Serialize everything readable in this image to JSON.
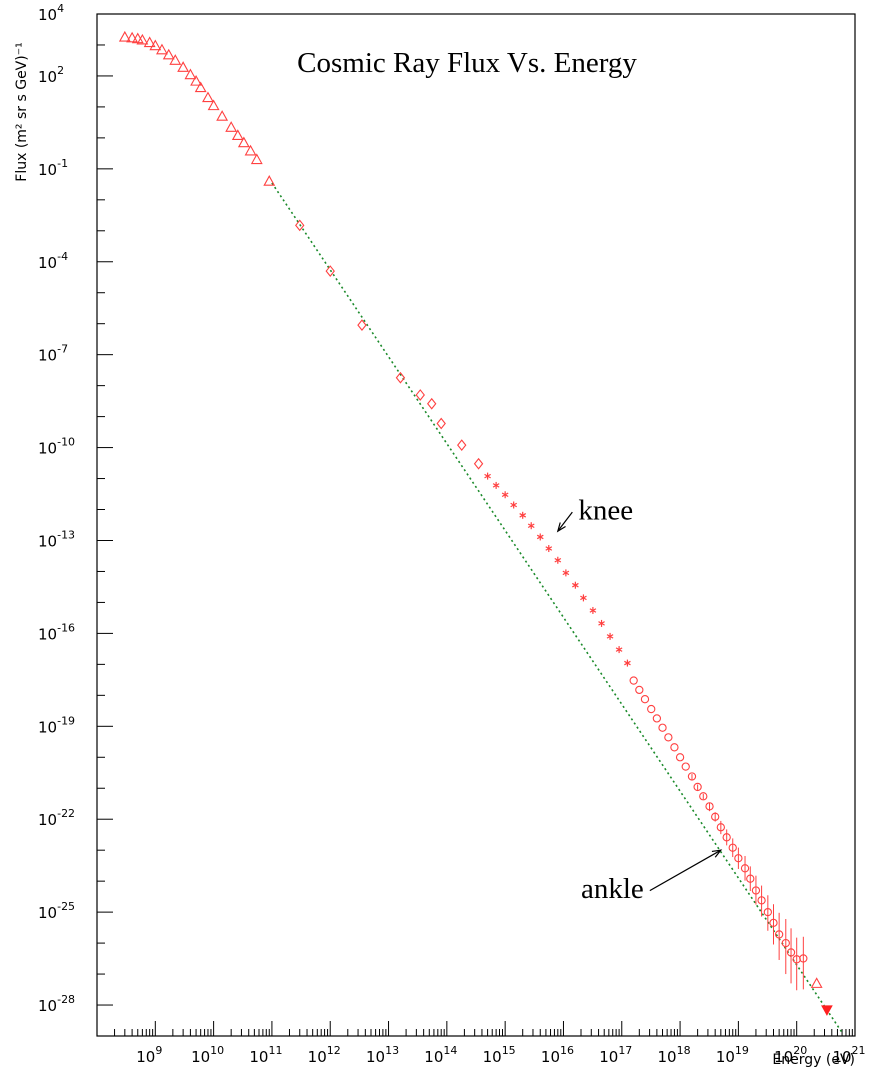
{
  "chart_data": {
    "type": "scatter",
    "title": "Cosmic Ray Flux Vs. Energy",
    "xlabel": "Energy (eV)",
    "ylabel": "Flux (m² sr s GeV)⁻¹",
    "xscale": "log",
    "yscale": "log",
    "xlim": [
      100000000.0,
      1e+21
    ],
    "ylim": [
      1e-29,
      10000.0
    ],
    "grid": false,
    "legend": "none",
    "x_ticks": [
      {
        "base": "10",
        "exp": "9",
        "value": 1000000000.0
      },
      {
        "base": "10",
        "exp": "10",
        "value": 10000000000.0
      },
      {
        "base": "10",
        "exp": "11",
        "value": 100000000000.0
      },
      {
        "base": "10",
        "exp": "12",
        "value": 1000000000000.0
      },
      {
        "base": "10",
        "exp": "13",
        "value": 10000000000000.0
      },
      {
        "base": "10",
        "exp": "14",
        "value": 100000000000000.0
      },
      {
        "base": "10",
        "exp": "15",
        "value": 1000000000000000.0
      },
      {
        "base": "10",
        "exp": "16",
        "value": 1e+16
      },
      {
        "base": "10",
        "exp": "17",
        "value": 1e+17
      },
      {
        "base": "10",
        "exp": "18",
        "value": 1e+18
      },
      {
        "base": "10",
        "exp": "19",
        "value": 1e+19
      },
      {
        "base": "10",
        "exp": "20",
        "value": 1e+20
      },
      {
        "base": "10",
        "exp": "21",
        "value": 1e+21
      }
    ],
    "y_ticks": [
      {
        "base": "10",
        "exp": "4",
        "value": 10000.0
      },
      {
        "base": "10",
        "exp": "2",
        "value": 100.0
      },
      {
        "base": "10",
        "exp": "-1",
        "value": 0.1
      },
      {
        "base": "10",
        "exp": "-4",
        "value": 0.0001
      },
      {
        "base": "10",
        "exp": "-7",
        "value": 1e-07
      },
      {
        "base": "10",
        "exp": "-10",
        "value": 1e-10
      },
      {
        "base": "10",
        "exp": "-13",
        "value": 1e-13
      },
      {
        "base": "10",
        "exp": "-16",
        "value": 1e-16
      },
      {
        "base": "10",
        "exp": "-19",
        "value": 1e-19
      },
      {
        "base": "10",
        "exp": "-22",
        "value": 1e-22
      },
      {
        "base": "10",
        "exp": "-25",
        "value": 1e-25
      },
      {
        "base": "10",
        "exp": "-28",
        "value": 1e-28
      }
    ],
    "series": [
      {
        "marker": "triangle",
        "color": "#ff4040",
        "x": [
          300000000.0,
          400000000.0,
          500000000.0,
          600000000.0,
          800000000.0,
          1000000000.0,
          1300000000.0,
          1700000000.0,
          2200000000.0,
          3000000000.0,
          4000000000.0,
          5000000000.0,
          6000000000.0,
          8000000000.0,
          10000000000.0,
          14000000000.0,
          20000000000.0,
          26000000000.0,
          33000000000.0,
          43000000000.0,
          55000000000.0,
          90000000000.0
        ],
        "y": [
          1800,
          1700,
          1600,
          1450,
          1200,
          950,
          700,
          480,
          320,
          190,
          110,
          68,
          42,
          20,
          11,
          5,
          2.2,
          1.2,
          0.7,
          0.38,
          0.2,
          0.04
        ]
      },
      {
        "marker": "diamond",
        "color": "#ff4040",
        "x": [
          300000000000.0,
          1000000000000.0,
          3500000000000.0,
          16000000000000.0,
          35000000000000.0,
          55000000000000.0,
          80000000000000.0,
          180000000000000.0,
          350000000000000.0
        ],
        "y": [
          0.0015,
          5e-05,
          9e-07,
          1.8e-08,
          5e-09,
          2.6e-09,
          6e-10,
          1.2e-10,
          3e-11
        ]
      },
      {
        "marker": "star",
        "color": "#ff4040",
        "x": [
          500000000000000.0,
          700000000000000.0,
          1000000000000000.0,
          1400000000000000.0,
          2000000000000000.0,
          2800000000000000.0,
          4000000000000000.0,
          5600000000000000.0,
          8000000000000000.0,
          1.1e+16,
          1.6e+16,
          2.2e+16,
          3.2e+16,
          4.5e+16,
          6.3e+16,
          9e+16,
          1.25e+17
        ],
        "y": [
          1.2e-11,
          6e-12,
          3e-12,
          1.4e-12,
          6.5e-13,
          3e-13,
          1.3e-13,
          5.5e-14,
          2.3e-14,
          9e-15,
          3.6e-15,
          1.4e-15,
          5.5e-16,
          2.1e-16,
          8e-17,
          3e-17,
          1.1e-17
        ]
      },
      {
        "marker": "circle",
        "color": "#ff4040",
        "x": [
          1.6e+17,
          2e+17,
          2.5e+17,
          3.2e+17,
          4e+17,
          5e+17,
          6.3e+17,
          8e+17,
          1e+18,
          1.25e+18,
          1.6e+18,
          2e+18,
          2.5e+18,
          3.2e+18,
          4e+18,
          5e+18,
          6.3e+18,
          8e+18,
          1e+19,
          1.3e+19,
          1.6e+19,
          2e+19,
          2.5e+19,
          3.2e+19,
          4e+19,
          5e+19,
          6.5e+19,
          8e+19,
          1e+20,
          1.3e+20
        ],
        "y": [
          3e-18,
          1.5e-18,
          7.5e-19,
          3.6e-19,
          1.8e-19,
          9e-20,
          4.4e-20,
          2.1e-20,
          1e-20,
          5e-21,
          2.4e-21,
          1.1e-21,
          5.5e-22,
          2.6e-22,
          1.2e-22,
          5.5e-23,
          2.6e-23,
          1.2e-23,
          5.5e-24,
          2.6e-24,
          1.2e-24,
          5e-25,
          2.4e-25,
          1e-25,
          4.5e-26,
          1.9e-26,
          1e-26,
          5e-27,
          3e-27,
          3.2e-27
        ],
        "err_lo": [
          0.9,
          0.9,
          0.9,
          0.9,
          0.9,
          0.9,
          0.9,
          0.9,
          0.9,
          0.9,
          0.8,
          0.8,
          0.8,
          0.7,
          0.7,
          0.6,
          0.55,
          0.5,
          0.45,
          0.4,
          0.4,
          0.35,
          0.3,
          0.25,
          0.2,
          0.15,
          0.1,
          0.1,
          0.1,
          0.1
        ],
        "err_hi": [
          1.1,
          1.1,
          1.1,
          1.1,
          1.1,
          1.1,
          1.1,
          1.1,
          1.1,
          1.1,
          1.2,
          1.2,
          1.2,
          1.3,
          1.4,
          1.6,
          1.8,
          2.0,
          2.2,
          2.5,
          2.5,
          3,
          3,
          3.5,
          4,
          5,
          6,
          6,
          5,
          5
        ]
      },
      {
        "marker": "triangle-open-upper",
        "color": "#ff4040",
        "x": [
          2.2e+20
        ],
        "y": [
          5e-28
        ]
      },
      {
        "marker": "triangle-down-filled",
        "color": "#ff2020",
        "x": [
          3.3e+20
        ],
        "y": [
          7e-29
        ]
      }
    ],
    "fit_line": {
      "style": "dotted",
      "color": "#1a8a2a",
      "x": [
        100000000000.0,
        6e+20
      ],
      "y": [
        0.035,
        1.3e-29
      ]
    },
    "annotations": [
      {
        "text": "knee",
        "x": 1.8e+16,
        "y": 1e-12,
        "arrow_to_x": 8000000000000000.0,
        "arrow_to_y": 2e-13
      },
      {
        "text": "ankle",
        "x": 2e+16,
        "y": 6e-25,
        "arrow_to_x": 5e+18,
        "arrow_to_y": 1e-23
      }
    ]
  }
}
